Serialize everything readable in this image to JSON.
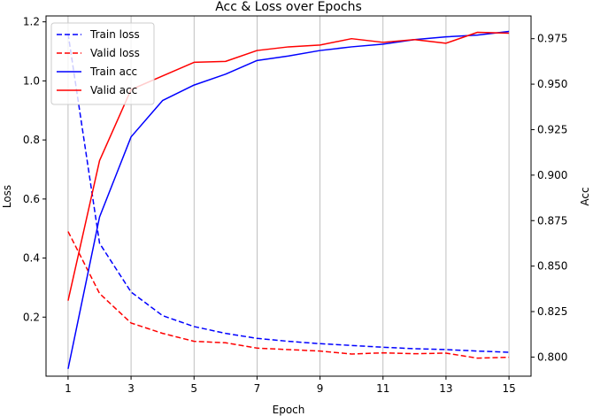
{
  "chart_data": {
    "type": "line",
    "title": "Acc & Loss over Epochs",
    "xlabel": "Epoch",
    "ylabel_left": "Loss",
    "ylabel_right": "Acc",
    "x": [
      1,
      2,
      3,
      4,
      5,
      6,
      7,
      8,
      9,
      10,
      11,
      12,
      13,
      14,
      15
    ],
    "x_ticks": [
      1,
      3,
      5,
      7,
      9,
      11,
      13,
      15
    ],
    "xlim": [
      0.3,
      15.7
    ],
    "ylim_left": [
      0.0,
      1.22
    ],
    "ylim_right": [
      0.7895,
      0.9875
    ],
    "left_ticks": [
      0.2,
      0.4,
      0.6,
      0.8,
      1.0,
      1.2
    ],
    "left_tick_labels": [
      "0.2",
      "0.4",
      "0.6",
      "0.8",
      "1.0",
      "1.2"
    ],
    "right_ticks": [
      0.8,
      0.825,
      0.85,
      0.875,
      0.9,
      0.925,
      0.95,
      0.975
    ],
    "right_tick_labels": [
      "0.800",
      "0.825",
      "0.850",
      "0.875",
      "0.900",
      "0.925",
      "0.950",
      "0.975"
    ],
    "grid": "vertical-x",
    "legend_position": "top-left",
    "series": [
      {
        "name": "Train loss",
        "axis": "left",
        "color": "#0000ff",
        "style": "dashed",
        "values": [
          1.16,
          0.45,
          0.285,
          0.205,
          0.168,
          0.145,
          0.128,
          0.118,
          0.11,
          0.104,
          0.098,
          0.093,
          0.09,
          0.085,
          0.081
        ]
      },
      {
        "name": "Valid loss",
        "axis": "left",
        "color": "#ff0000",
        "style": "dashed",
        "values": [
          0.49,
          0.28,
          0.18,
          0.145,
          0.118,
          0.113,
          0.095,
          0.09,
          0.085,
          0.075,
          0.079,
          0.076,
          0.078,
          0.061,
          0.064
        ]
      },
      {
        "name": "Train acc",
        "axis": "right",
        "color": "#0000ff",
        "style": "solid",
        "values": [
          0.7935,
          0.877,
          0.921,
          0.941,
          0.9495,
          0.9555,
          0.963,
          0.9655,
          0.9685,
          0.9705,
          0.972,
          0.9745,
          0.976,
          0.977,
          0.979
        ]
      },
      {
        "name": "Valid acc",
        "axis": "right",
        "color": "#ff0000",
        "style": "solid",
        "values": [
          0.831,
          0.908,
          0.947,
          0.9545,
          0.962,
          0.9625,
          0.9685,
          0.9705,
          0.9715,
          0.975,
          0.973,
          0.9745,
          0.9725,
          0.9785,
          0.978
        ]
      }
    ]
  }
}
